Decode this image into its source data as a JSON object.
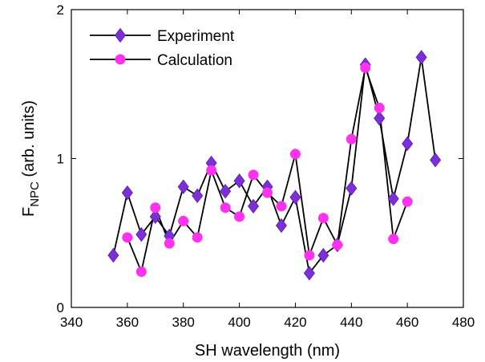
{
  "chart_data": {
    "type": "line",
    "xlabel": "SH wavelength (nm)",
    "ylabel_main": "F",
    "ylabel_sub": "NPC",
    "ylabel_rest": " (arb. units)",
    "xlim": [
      340,
      480
    ],
    "ylim": [
      0,
      2
    ],
    "xticks": [
      340,
      360,
      380,
      400,
      420,
      440,
      460,
      480
    ],
    "yticks": [
      0,
      1,
      2
    ],
    "grid": false,
    "legend_position": "top-left",
    "series": [
      {
        "name": "Experiment",
        "marker": "diamond",
        "marker_color": "#7b2fd6",
        "line_color": "#000000",
        "x": [
          355,
          360,
          365,
          370,
          375,
          380,
          385,
          390,
          395,
          400,
          405,
          410,
          415,
          420,
          425,
          430,
          435,
          440,
          445,
          450,
          455,
          460,
          465,
          470
        ],
        "y": [
          0.35,
          0.77,
          0.49,
          0.61,
          0.48,
          0.81,
          0.75,
          0.97,
          0.78,
          0.85,
          0.68,
          0.81,
          0.55,
          0.74,
          0.23,
          0.35,
          0.42,
          0.8,
          1.63,
          1.27,
          0.73,
          1.1,
          1.68,
          0.99
        ]
      },
      {
        "name": "Calculation",
        "marker": "circle",
        "marker_color": "#ff33ee",
        "line_color": "#000000",
        "x": [
          360,
          365,
          370,
          375,
          380,
          385,
          390,
          395,
          400,
          405,
          410,
          415,
          420,
          425,
          430,
          435,
          440,
          445,
          450,
          455,
          460
        ],
        "y": [
          0.47,
          0.24,
          0.67,
          0.43,
          0.58,
          0.47,
          0.92,
          0.67,
          0.61,
          0.89,
          0.77,
          0.68,
          1.03,
          0.35,
          0.6,
          0.42,
          1.13,
          1.61,
          1.34,
          0.46,
          0.71
        ]
      }
    ]
  }
}
